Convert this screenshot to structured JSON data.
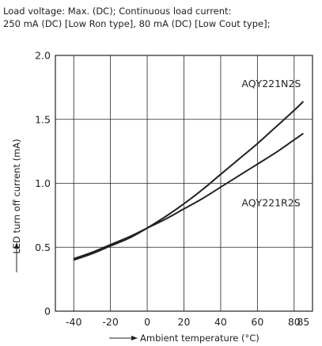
{
  "caption": {
    "line1": "Load voltage: Max. (DC); Continuous load current:",
    "line2": "250 mA (DC) [Low Ron type], 80 mA (DC) [Low Cout type];"
  },
  "chart_data": {
    "type": "line",
    "xlabel": "Ambient temperature (°C)",
    "ylabel": "LED turn off current (mA)",
    "xlim": [
      -50,
      90
    ],
    "ylim": [
      0,
      2.0
    ],
    "x_ticks": [
      {
        "value": -40,
        "label": "-40"
      },
      {
        "value": -20,
        "label": "-20"
      },
      {
        "value": 0,
        "label": "0"
      },
      {
        "value": 20,
        "label": "20"
      },
      {
        "value": 40,
        "label": "40"
      },
      {
        "value": 60,
        "label": "60"
      },
      {
        "value": 80,
        "label": "80"
      },
      {
        "value": 85,
        "label": "85"
      }
    ],
    "y_ticks": [
      {
        "value": 0,
        "label": "0"
      },
      {
        "value": 0.5,
        "label": "0.5"
      },
      {
        "value": 1.0,
        "label": "1.0"
      },
      {
        "value": 1.5,
        "label": "1.5"
      },
      {
        "value": 2.0,
        "label": "2.0"
      }
    ],
    "grid": true,
    "series": [
      {
        "name": "AQY221N2S",
        "color": "#222222",
        "x": [
          -40,
          -30,
          -20,
          -10,
          0,
          10,
          20,
          30,
          40,
          50,
          60,
          70,
          80,
          85
        ],
        "y": [
          0.4,
          0.45,
          0.51,
          0.57,
          0.65,
          0.74,
          0.84,
          0.95,
          1.07,
          1.19,
          1.31,
          1.44,
          1.57,
          1.64
        ]
      },
      {
        "name": "AQY221R2S",
        "color": "#222222",
        "x": [
          -40,
          -30,
          -20,
          -10,
          0,
          10,
          20,
          30,
          40,
          50,
          60,
          70,
          80,
          85
        ],
        "y": [
          0.41,
          0.46,
          0.52,
          0.58,
          0.65,
          0.72,
          0.8,
          0.88,
          0.97,
          1.06,
          1.15,
          1.24,
          1.34,
          1.39
        ]
      }
    ]
  }
}
